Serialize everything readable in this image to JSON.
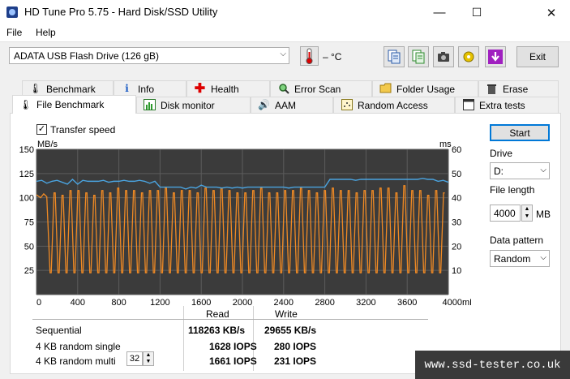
{
  "window": {
    "title": "HD Tune Pro 5.75 - Hard Disk/SSD Utility",
    "minimize": "—",
    "maximize": "☐",
    "close": "✕"
  },
  "menu": {
    "file": "File",
    "help": "Help"
  },
  "toolbar": {
    "drive": "ADATA   USB Flash Drive (126 gB)",
    "temperature": "– °C",
    "exit_label": "Exit",
    "icons": [
      "copy-text-icon",
      "copy-info-icon",
      "screenshot-icon",
      "options-icon",
      "save-icon"
    ]
  },
  "tabs_row1": [
    "Benchmark",
    "Info",
    "Health",
    "Error Scan",
    "Folder Usage",
    "Erase"
  ],
  "tabs_row2": [
    "File Benchmark",
    "Disk monitor",
    "AAM",
    "Random Access",
    "Extra tests"
  ],
  "benchmark": {
    "transfer_speed_label": "Transfer speed",
    "left_unit": "MB/s",
    "right_unit": "ms",
    "start_label": "Start",
    "drive_label": "Drive",
    "drive_value": "D:",
    "file_length_label": "File length",
    "file_length_value": "4000",
    "file_length_unit": "MB",
    "pattern_label": "Data pattern",
    "pattern_value": "Random",
    "results": {
      "read_header": "Read",
      "write_header": "Write",
      "rows": [
        {
          "label": "Sequential",
          "read": "118263 KB/s",
          "write": "29655 KB/s"
        },
        {
          "label": "4 KB random single",
          "read": "1628 IOPS",
          "write": "280 IOPS"
        },
        {
          "label": "4 KB random multi",
          "read": "1661 IOPS",
          "write": "231 IOPS"
        }
      ],
      "queue_depth": "32"
    }
  },
  "chart_data": {
    "type": "line",
    "x_ticks": [
      "0",
      "400",
      "800",
      "1200",
      "1600",
      "2000",
      "2400",
      "2800",
      "3200",
      "3600",
      "4000mB"
    ],
    "xlim": [
      0,
      4000
    ],
    "left_ticks": [
      "150",
      "125",
      "100",
      "75",
      "50",
      "25"
    ],
    "right_ticks": [
      "60",
      "50",
      "40",
      "30",
      "20",
      "10"
    ],
    "ylim_left": [
      0,
      150
    ],
    "ylim_right": [
      0,
      60
    ],
    "grid": true,
    "colors": {
      "read": "#4aa3df",
      "write": "#f08a24",
      "bg": "#3b3b3b"
    },
    "series": [
      {
        "key": "read",
        "x": [
          0,
          50,
          100,
          150,
          200,
          250,
          300,
          350,
          400,
          450,
          500,
          550,
          600,
          650,
          700,
          750,
          800,
          850,
          900,
          950,
          1000,
          1050,
          1100,
          1150,
          1200,
          1250,
          1300,
          1350,
          1400,
          1450,
          1500,
          1550,
          1600,
          1650,
          1700,
          1750,
          1800,
          1850,
          1900,
          1950,
          2000,
          2050,
          2100,
          2150,
          2200,
          2250,
          2300,
          2350,
          2400,
          2450,
          2500,
          2550,
          2600,
          2650,
          2700,
          2750,
          2800,
          2850,
          2900,
          2950,
          3000,
          3050,
          3100,
          3150,
          3200,
          3250,
          3300,
          3350,
          3400,
          3450,
          3500,
          3550,
          3600,
          3650,
          3700,
          3750,
          3800,
          3850,
          3900,
          3950,
          4000
        ],
        "y": [
          117,
          118,
          115,
          117,
          118,
          116,
          114,
          119,
          114,
          118,
          117,
          117,
          117,
          118,
          116,
          117,
          117,
          118,
          117,
          117,
          118,
          117,
          115,
          117,
          111,
          111,
          111,
          111,
          111,
          109,
          111,
          110,
          113,
          111,
          111,
          111,
          110,
          111,
          110,
          111,
          110,
          111,
          111,
          111,
          111,
          111,
          111,
          111,
          111,
          110,
          111,
          111,
          111,
          111,
          111,
          111,
          111,
          119,
          119,
          119,
          119,
          119,
          118,
          119,
          119,
          119,
          119,
          119,
          119,
          119,
          119,
          119,
          119,
          119,
          119,
          120,
          119,
          119,
          117,
          118,
          116
        ]
      },
      {
        "key": "write",
        "peaks": [
          42,
          41,
          43,
          43,
          42,
          41,
          43,
          42,
          44,
          43,
          43,
          42,
          43,
          43,
          44,
          42,
          43,
          43,
          42,
          44,
          43,
          44,
          43,
          42,
          42,
          43,
          44,
          42,
          42,
          43,
          43,
          44,
          43,
          42,
          43,
          44,
          43,
          43,
          42,
          43,
          43,
          44,
          44,
          42,
          45,
          43,
          43,
          41,
          43,
          42
        ],
        "lows": [
          9,
          9,
          9,
          9,
          9,
          9,
          9,
          9,
          9,
          9,
          9,
          9,
          9,
          9,
          9,
          9,
          9,
          9,
          9,
          9,
          9,
          9,
          9,
          9,
          9,
          9,
          9,
          9,
          9,
          9,
          9,
          9,
          9,
          9,
          9,
          9,
          9,
          9,
          9,
          9,
          9,
          9,
          9,
          9,
          9,
          9,
          9,
          9,
          9,
          9
        ],
        "x_start": 120,
        "x_end": 3980
      }
    ]
  },
  "watermark": "www.ssd-tester.co.uk"
}
